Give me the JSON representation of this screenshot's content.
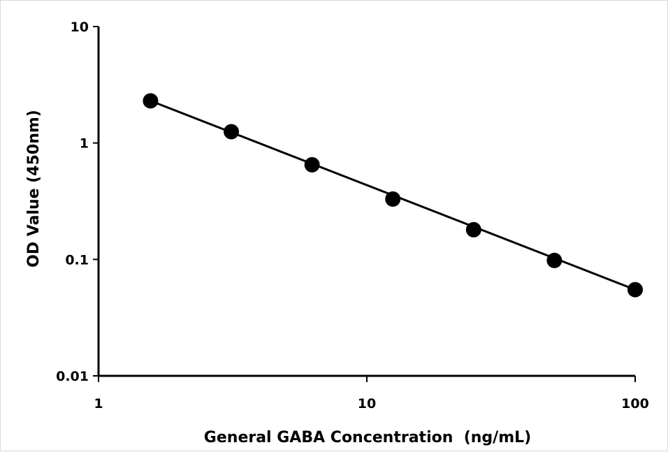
{
  "chart_data": {
    "type": "scatter",
    "title": "",
    "xlabel": "General GABA Concentration  (ng/mL)",
    "ylabel": "OD Value (450nm)",
    "x_scale": "log",
    "y_scale": "log",
    "xlim": [
      1,
      100
    ],
    "ylim": [
      0.01,
      10
    ],
    "x_ticks": [
      1,
      10,
      100
    ],
    "y_ticks": [
      0.01,
      0.1,
      1,
      10
    ],
    "x_tick_labels": [
      "1",
      "10",
      "100"
    ],
    "y_tick_labels": [
      "0.01",
      "0.1",
      "1",
      "10"
    ],
    "grid": false,
    "legend": "none",
    "series": [
      {
        "x": [
          1.5625,
          3.125,
          6.25,
          12.5,
          25,
          50,
          100
        ],
        "y": [
          2.3,
          1.25,
          0.65,
          0.33,
          0.18,
          0.098,
          0.055
        ]
      }
    ],
    "trendline": {
      "type": "power",
      "from": [
        1.5625,
        2.3
      ],
      "to": [
        100,
        0.055
      ]
    },
    "colors": {
      "marker": "#000000",
      "line": "#000000",
      "axis": "#000000"
    }
  }
}
